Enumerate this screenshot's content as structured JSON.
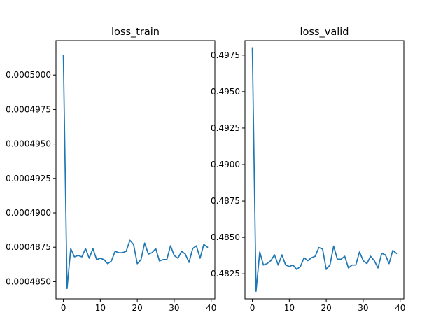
{
  "chart_data": [
    {
      "type": "line",
      "title": "loss_train",
      "xlabel": "",
      "ylabel": "",
      "xlim": [
        -2,
        41
      ],
      "ylim": [
        0.00048375,
        0.0005025
      ],
      "xticks": [
        0,
        10,
        20,
        30,
        40
      ],
      "xtick_labels": [
        "0",
        "10",
        "20",
        "30",
        "40"
      ],
      "yticks": [
        0.000485,
        0.0004875,
        0.00049,
        0.0004925,
        0.000495,
        0.0004975,
        0.0005
      ],
      "ytick_labels": [
        "0.0004850",
        "0.0004875",
        "0.0004900",
        "0.0004925",
        "0.0004950",
        "0.0004975",
        "0.0005000"
      ],
      "grid": false,
      "series": [
        {
          "color": "#1f77b4",
          "x": [
            0,
            1,
            2,
            3,
            4,
            5,
            6,
            7,
            8,
            9,
            10,
            11,
            12,
            13,
            14,
            15,
            16,
            17,
            18,
            19,
            20,
            21,
            22,
            23,
            24,
            25,
            26,
            27,
            28,
            29,
            30,
            31,
            32,
            33,
            34,
            35,
            36,
            37,
            38,
            39
          ],
          "y": [
            0.0005014,
            0.0004845,
            0.0004874,
            0.0004868,
            0.0004869,
            0.0004868,
            0.0004874,
            0.0004867,
            0.0004874,
            0.0004866,
            0.0004867,
            0.0004866,
            0.0004863,
            0.0004865,
            0.0004872,
            0.0004871,
            0.0004871,
            0.0004872,
            0.000488,
            0.0004877,
            0.0004863,
            0.0004866,
            0.0004878,
            0.000487,
            0.0004871,
            0.0004874,
            0.0004865,
            0.0004866,
            0.0004866,
            0.0004876,
            0.0004869,
            0.0004867,
            0.0004872,
            0.000487,
            0.0004864,
            0.0004874,
            0.0004876,
            0.0004867,
            0.0004877,
            0.0004875
          ]
        }
      ]
    },
    {
      "type": "line",
      "title": "loss_valid",
      "xlabel": "",
      "ylabel": "",
      "xlim": [
        -2,
        41
      ],
      "ylim": [
        0.48078,
        0.4985
      ],
      "xticks": [
        0,
        10,
        20,
        30,
        40
      ],
      "xtick_labels": [
        "0",
        "10",
        "20",
        "30",
        "40"
      ],
      "yticks": [
        0.4825,
        0.485,
        0.4875,
        0.49,
        0.4925,
        0.495,
        0.4975
      ],
      "ytick_labels": [
        "0.4825",
        "0.4850",
        "0.4875",
        "0.4900",
        "0.4925",
        "0.4950",
        "0.4975"
      ],
      "grid": false,
      "series": [
        {
          "color": "#1f77b4",
          "x": [
            0,
            1,
            2,
            3,
            4,
            5,
            6,
            7,
            8,
            9,
            10,
            11,
            12,
            13,
            14,
            15,
            16,
            17,
            18,
            19,
            20,
            21,
            22,
            23,
            24,
            25,
            26,
            27,
            28,
            29,
            30,
            31,
            32,
            33,
            34,
            35,
            36,
            37,
            38,
            39
          ],
          "y": [
            0.498,
            0.4813,
            0.484,
            0.4831,
            0.4832,
            0.4834,
            0.4838,
            0.4831,
            0.4838,
            0.4831,
            0.483,
            0.4831,
            0.4828,
            0.483,
            0.4836,
            0.4834,
            0.4836,
            0.4837,
            0.4843,
            0.4842,
            0.4828,
            0.4831,
            0.4844,
            0.4835,
            0.4835,
            0.4837,
            0.4829,
            0.4831,
            0.4831,
            0.484,
            0.4834,
            0.4832,
            0.4837,
            0.4834,
            0.4829,
            0.4839,
            0.4838,
            0.4832,
            0.4841,
            0.4839
          ]
        }
      ]
    }
  ]
}
